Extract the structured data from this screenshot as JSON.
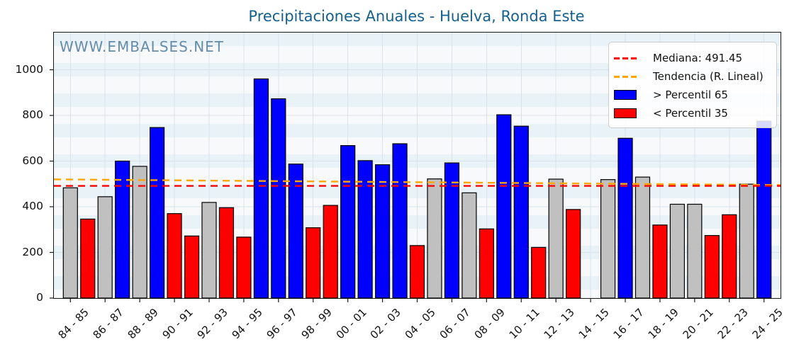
{
  "title": "Precipitaciones Anuales - Huelva, Ronda Este",
  "watermark": "WWW.EMBALSES.NET",
  "legend": {
    "median": "Mediana: 491.45",
    "trend": "Tendencia (R. Lineal)",
    "above": "> Percentil 65",
    "below": "< Percentil 35"
  },
  "colors": {
    "above_p65": "#0000ff",
    "below_p35": "#ff0000",
    "normal": "#c0c0c0",
    "bar_edge": "#000000",
    "median_line": "#ff0000",
    "trend_line": "#ffa500",
    "grid": "#d9e2e8",
    "title_text": "#15608c",
    "watermark_text": "#3d6e92",
    "stripe_blue": "#e9f2f7",
    "stripe_white": "#f8f9fa"
  },
  "chart_data": {
    "type": "bar",
    "title": "Precipitaciones Anuales - Huelva, Ronda Este",
    "xlabel": "",
    "ylabel": "",
    "ylim": [
      0,
      1163
    ],
    "yticks": [
      0,
      200,
      400,
      600,
      800,
      1000
    ],
    "grid": true,
    "legend_position": "upper right",
    "x_tick_step": 2,
    "x_tick_labels": [
      "84 - 85",
      "86 - 87",
      "88 - 89",
      "90 - 91",
      "92 - 93",
      "94 - 95",
      "96 - 97",
      "98 - 99",
      "00 - 01",
      "02 - 03",
      "04 - 05",
      "06 - 07",
      "08 - 09",
      "10 - 11",
      "12 - 13",
      "14 - 15",
      "16 - 17",
      "18 - 19",
      "20 - 21",
      "22 - 23",
      "24 - 25"
    ],
    "median": 491.45,
    "trend": {
      "label": "Tendencia (R. Lineal)",
      "start_value": 520,
      "end_value": 495
    },
    "classes": {
      "above": {
        "label": "> Percentil 65",
        "color": "#0000ff"
      },
      "below": {
        "label": "< Percentil 35",
        "color": "#ff0000"
      },
      "normal": {
        "label": "",
        "color": "#c0c0c0"
      }
    },
    "series": [
      {
        "season": "84 - 85",
        "value": 483,
        "class": "normal"
      },
      {
        "season": "85 - 86",
        "value": 346,
        "class": "below"
      },
      {
        "season": "86 - 87",
        "value": 444,
        "class": "normal"
      },
      {
        "season": "87 - 88",
        "value": 600,
        "class": "above"
      },
      {
        "season": "88 - 89",
        "value": 577,
        "class": "normal"
      },
      {
        "season": "89 - 90",
        "value": 747,
        "class": "above"
      },
      {
        "season": "90 - 91",
        "value": 370,
        "class": "below"
      },
      {
        "season": "91 - 92",
        "value": 272,
        "class": "below"
      },
      {
        "season": "92 - 93",
        "value": 419,
        "class": "normal"
      },
      {
        "season": "93 - 94",
        "value": 396,
        "class": "below"
      },
      {
        "season": "94 - 95",
        "value": 267,
        "class": "below"
      },
      {
        "season": "95 - 96",
        "value": 960,
        "class": "above"
      },
      {
        "season": "96 - 97",
        "value": 873,
        "class": "above"
      },
      {
        "season": "97 - 98",
        "value": 587,
        "class": "above"
      },
      {
        "season": "98 - 99",
        "value": 308,
        "class": "below"
      },
      {
        "season": "99 - 00",
        "value": 406,
        "class": "below"
      },
      {
        "season": "00 - 01",
        "value": 668,
        "class": "above"
      },
      {
        "season": "01 - 02",
        "value": 602,
        "class": "above"
      },
      {
        "season": "02 - 03",
        "value": 584,
        "class": "above"
      },
      {
        "season": "03 - 04",
        "value": 676,
        "class": "above"
      },
      {
        "season": "04 - 05",
        "value": 230,
        "class": "below"
      },
      {
        "season": "05 - 06",
        "value": 522,
        "class": "normal"
      },
      {
        "season": "06 - 07",
        "value": 592,
        "class": "above"
      },
      {
        "season": "07 - 08",
        "value": 461,
        "class": "normal"
      },
      {
        "season": "08 - 09",
        "value": 303,
        "class": "below"
      },
      {
        "season": "09 - 10",
        "value": 803,
        "class": "above"
      },
      {
        "season": "10 - 11",
        "value": 753,
        "class": "above"
      },
      {
        "season": "11 - 12",
        "value": 222,
        "class": "below"
      },
      {
        "season": "12 - 13",
        "value": 521,
        "class": "normal"
      },
      {
        "season": "13 - 14",
        "value": 388,
        "class": "below"
      },
      {
        "season": "14 - 15",
        "value": null,
        "class": null
      },
      {
        "season": "15 - 16",
        "value": 519,
        "class": "normal"
      },
      {
        "season": "16 - 17",
        "value": 700,
        "class": "above"
      },
      {
        "season": "17 - 18",
        "value": 530,
        "class": "normal"
      },
      {
        "season": "18 - 19",
        "value": 320,
        "class": "below"
      },
      {
        "season": "19 - 20",
        "value": 411,
        "class": "normal"
      },
      {
        "season": "20 - 21",
        "value": 411,
        "class": "normal"
      },
      {
        "season": "21 - 22",
        "value": 274,
        "class": "below"
      },
      {
        "season": "22 - 23",
        "value": 365,
        "class": "below"
      },
      {
        "season": "23 - 24",
        "value": 499,
        "class": "normal"
      },
      {
        "season": "24 - 25",
        "value": 775,
        "class": "above"
      }
    ]
  }
}
